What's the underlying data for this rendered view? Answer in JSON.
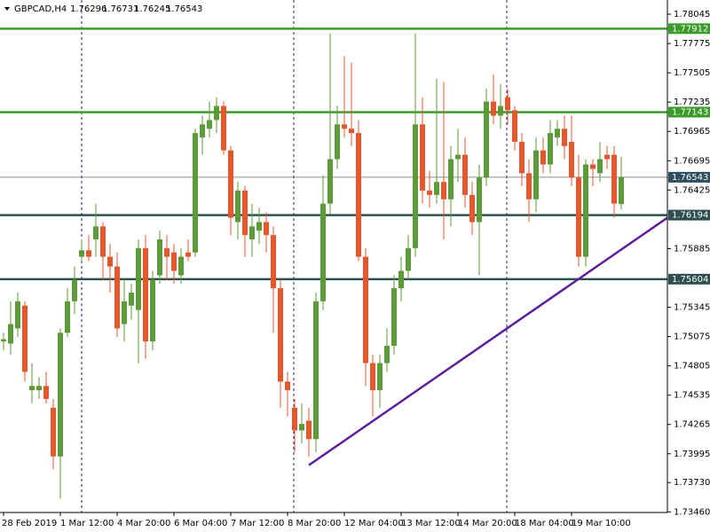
{
  "chart_data": {
    "type": "candlestick",
    "symbol": "GBPCAD,H4",
    "up_color": "#5b9a35",
    "down_color": "#e8542c",
    "x": [
      "28 Feb 2019",
      null,
      null,
      null,
      null,
      null,
      null,
      null,
      "1 Mar 12:00",
      null,
      null,
      null,
      null,
      null,
      null,
      null,
      "4 Mar 20:00",
      null,
      null,
      null,
      null,
      null,
      null,
      null,
      "6 Mar 04:00",
      null,
      null,
      null,
      null,
      null,
      null,
      null,
      "7 Mar 12:00",
      null,
      null,
      null,
      null,
      null,
      null,
      null,
      "8 Mar 20:00",
      null,
      null,
      null,
      null,
      null,
      null,
      null,
      "12 Mar 04:00",
      null,
      null,
      null,
      null,
      null,
      null,
      null,
      "13 Mar 12:00",
      null,
      null,
      null,
      null,
      null,
      null,
      null,
      "14 Mar 20:00",
      null,
      null,
      null,
      null,
      null,
      null,
      null,
      "18 Mar 04:00",
      null,
      null,
      null,
      null,
      null,
      null,
      null,
      "19 Mar 10:00",
      null,
      null,
      null,
      null,
      null,
      null,
      null
    ],
    "open": [
      1.7503,
      1.7501,
      1.7515,
      1.7536,
      1.7458,
      1.7458,
      1.7462,
      1.7442,
      1.7397,
      1.7511,
      1.754,
      1.7581,
      1.7587,
      1.7597,
      1.7609,
      1.7581,
      1.7572,
      1.7519,
      1.7536,
      1.7532,
      1.7589,
      1.7503,
      1.7564,
      1.7589,
      1.7585,
      1.7564,
      1.7585,
      1.7585,
      1.7691,
      1.7699,
      1.7707,
      1.772,
      1.7679,
      1.7613,
      1.7642,
      1.7597,
      1.7605,
      1.7613,
      1.7601,
      1.7552,
      1.7466,
      1.7442,
      1.7421,
      1.743,
      1.7413,
      1.754,
      1.763,
      1.7671,
      1.7703,
      1.7699,
      1.7695,
      1.7581,
      1.7483,
      1.7458,
      1.7483,
      1.7499,
      1.7552,
      1.7568,
      1.7589,
      1.7703,
      1.7642,
      1.7638,
      1.765,
      1.7634,
      1.7671,
      1.7675,
      1.7638,
      1.7613,
      1.7654,
      1.7724,
      1.7711,
      1.7728,
      1.7716,
      1.7687,
      1.7658,
      1.7634,
      1.7679,
      1.7666,
      1.7691,
      1.7699,
      1.7687,
      1.7654,
      1.7581,
      1.7666,
      1.7658,
      1.7675,
      1.7675,
      1.76296
    ],
    "high": [
      1.7511,
      1.754,
      1.7548,
      1.754,
      1.7483,
      1.747,
      1.7475,
      1.745,
      1.7515,
      1.7552,
      1.7572,
      1.7597,
      1.7601,
      1.763,
      1.7613,
      1.7593,
      1.7585,
      1.756,
      1.7556,
      1.7597,
      1.7601,
      1.7568,
      1.7605,
      1.7601,
      1.7593,
      1.7589,
      1.7597,
      1.7699,
      1.7711,
      1.7724,
      1.7728,
      1.7724,
      1.7683,
      1.765,
      1.7646,
      1.763,
      1.7626,
      1.7622,
      1.7609,
      1.756,
      1.7475,
      1.745,
      1.7446,
      1.7442,
      1.7548,
      1.7656,
      1.7787,
      1.772,
      1.7766,
      1.776,
      1.7707,
      1.7589,
      1.7491,
      1.7491,
      1.7515,
      1.7564,
      1.7581,
      1.7601,
      1.7787,
      1.7728,
      1.766,
      1.7745,
      1.7742,
      1.7683,
      1.7699,
      1.7691,
      1.765,
      1.7666,
      1.7736,
      1.7749,
      1.774,
      1.7736,
      1.772,
      1.7695,
      1.7671,
      1.7691,
      1.7691,
      1.7707,
      1.7707,
      1.7711,
      1.7711,
      1.7675,
      1.7671,
      1.7671,
      1.7687,
      1.7683,
      1.7683,
      1.76731
    ],
    "low": [
      1.7495,
      1.7491,
      1.7507,
      1.7466,
      1.7446,
      1.745,
      1.7446,
      1.7385,
      1.7358,
      1.7507,
      1.7528,
      1.7577,
      1.7577,
      1.7581,
      1.756,
      1.7548,
      1.7507,
      1.7503,
      1.7523,
      1.7483,
      1.7487,
      1.7495,
      1.7556,
      1.756,
      1.7556,
      1.7556,
      1.7577,
      1.7581,
      1.7675,
      1.7691,
      1.7695,
      1.7675,
      1.7601,
      1.7597,
      1.7581,
      1.7581,
      1.7593,
      1.7585,
      1.7511,
      1.7442,
      1.7434,
      1.7401,
      1.7409,
      1.7397,
      1.7401,
      1.7532,
      1.762,
      1.7662,
      1.7691,
      1.7683,
      1.7577,
      1.7462,
      1.7434,
      1.7442,
      1.7475,
      1.7491,
      1.754,
      1.756,
      1.7581,
      1.763,
      1.7626,
      1.763,
      1.7597,
      1.7609,
      1.765,
      1.7626,
      1.7601,
      1.7564,
      1.7646,
      1.7703,
      1.7699,
      1.7703,
      1.7679,
      1.7646,
      1.7613,
      1.7622,
      1.7658,
      1.7658,
      1.7683,
      1.7671,
      1.7646,
      1.7572,
      1.7572,
      1.7646,
      1.765,
      1.7662,
      1.7617,
      1.76245
    ],
    "close": [
      1.7505,
      1.7519,
      1.754,
      1.7475,
      1.7462,
      1.7462,
      1.745,
      1.7397,
      1.7511,
      1.754,
      1.756,
      1.7587,
      1.7581,
      1.7609,
      1.7581,
      1.7572,
      1.7515,
      1.754,
      1.7548,
      1.7589,
      1.7503,
      1.756,
      1.7597,
      1.7581,
      1.7568,
      1.7581,
      1.7581,
      1.7695,
      1.7703,
      1.7707,
      1.772,
      1.7679,
      1.7617,
      1.7642,
      1.7601,
      1.7609,
      1.7613,
      1.7601,
      1.7552,
      1.7466,
      1.7458,
      1.7421,
      1.7427,
      1.7413,
      1.754,
      1.763,
      1.7671,
      1.7703,
      1.7699,
      1.7695,
      1.7581,
      1.7483,
      1.7458,
      1.7483,
      1.7499,
      1.7552,
      1.7568,
      1.7589,
      1.7703,
      1.7642,
      1.7638,
      1.765,
      1.7634,
      1.7671,
      1.7675,
      1.7638,
      1.7613,
      1.7654,
      1.7724,
      1.7711,
      1.772,
      1.7716,
      1.7687,
      1.7658,
      1.7634,
      1.7679,
      1.7666,
      1.7695,
      1.7699,
      1.7683,
      1.7654,
      1.7581,
      1.7666,
      1.7662,
      1.7671,
      1.7671,
      1.763,
      1.76543
    ],
    "ylim": [
      1.73454,
      1.78176
    ],
    "yticks": [
      1.78045,
      1.77775,
      1.77505,
      1.77235,
      1.76965,
      1.76695,
      1.76425,
      1.75885,
      1.75345,
      1.75075,
      1.74805,
      1.74535,
      1.74265,
      1.73995,
      {
        "value": 1.7373,
        "label": "1.73730"
      },
      {
        "value": 1.7346,
        "label": "1.73460"
      }
    ],
    "levels": [
      {
        "value": 1.77912,
        "color": "#3a9a2a"
      },
      {
        "value": 1.77143,
        "color": "#3a9a2a"
      },
      {
        "value": 1.76543,
        "color": "#2f4f5f",
        "thin": true
      },
      {
        "value": 1.76194,
        "color": "#2f4f4f"
      },
      {
        "value": 1.75604,
        "color": "#2f4f4f"
      }
    ],
    "trendline": {
      "x": [
        43,
        93.5
      ],
      "y": [
        1.7389,
        1.7617
      ],
      "color": "#5b1f99"
    }
  }
}
